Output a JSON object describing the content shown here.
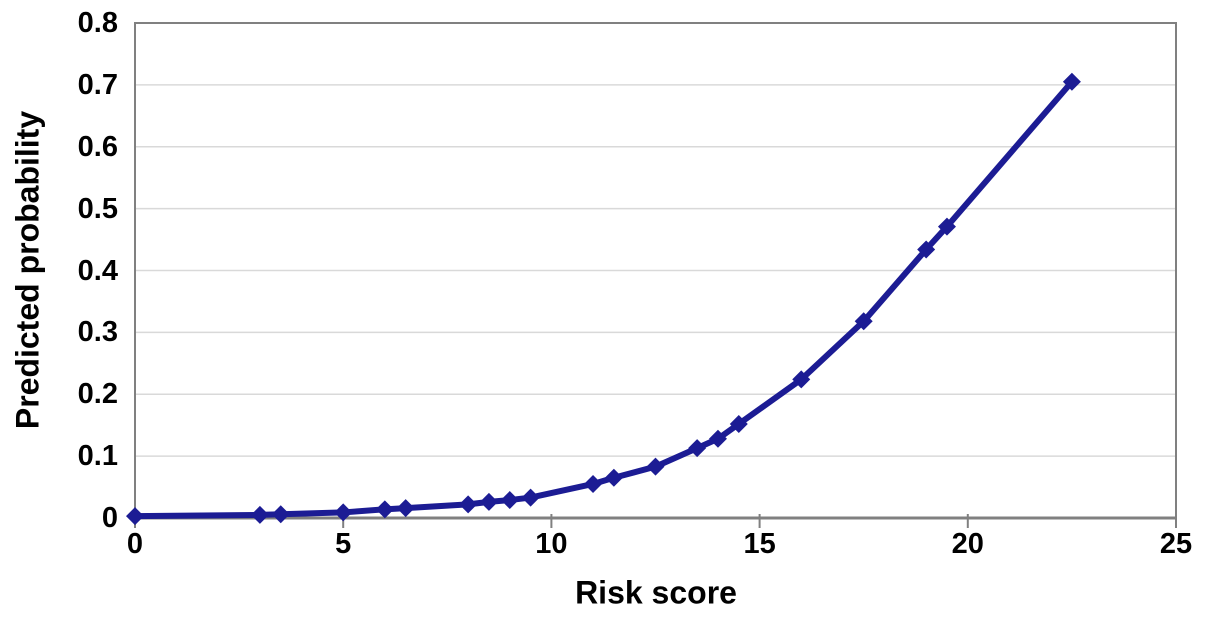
{
  "chart_data": {
    "type": "line",
    "title": "",
    "xlabel": "Risk score",
    "ylabel": "Predicted probability",
    "x": [
      0,
      3,
      3.5,
      5,
      6,
      6.5,
      8,
      8.5,
      9,
      9.5,
      11,
      11.5,
      12.5,
      13.5,
      14,
      14.5,
      16,
      17.5,
      19,
      19.5,
      22.5
    ],
    "y": [
      0.003,
      0.005,
      0.006,
      0.009,
      0.014,
      0.016,
      0.022,
      0.026,
      0.029,
      0.033,
      0.055,
      0.065,
      0.083,
      0.113,
      0.128,
      0.152,
      0.224,
      0.318,
      0.434,
      0.471,
      0.705
    ],
    "xlim": [
      0,
      25
    ],
    "ylim": [
      0,
      0.8
    ],
    "x_ticks": [
      0,
      5,
      10,
      15,
      20,
      25
    ],
    "x_tick_labels": [
      "0",
      "5",
      "10",
      "15",
      "20",
      "25"
    ],
    "y_ticks": [
      0,
      0.1,
      0.2,
      0.3,
      0.4,
      0.5,
      0.6,
      0.7,
      0.8
    ],
    "y_tick_labels": [
      "0",
      "0.1",
      "0.2",
      "0.3",
      "0.4",
      "0.5",
      "0.6",
      "0.7",
      "0.8"
    ],
    "grid": "horizontal-only",
    "legend": "none",
    "marker": "diamond",
    "line_color": "#1c1c94",
    "marker_color": "#1c1c94",
    "grid_color": "#d9d9d9",
    "axis_color": "#808080",
    "text_color": "#000000",
    "background": "#ffffff"
  }
}
